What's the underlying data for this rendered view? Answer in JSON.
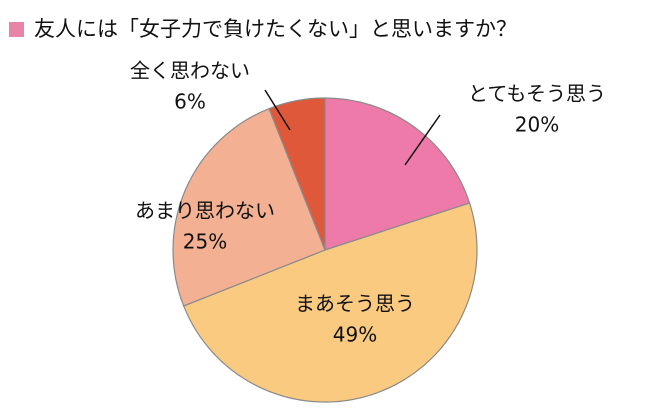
{
  "chart_data": {
    "type": "pie",
    "title": "友人には「女子力で負けたくない」と思いますか？",
    "categories": [
      "とてもそう思う",
      "まあそう思う",
      "あまり思わない",
      "全く思わない"
    ],
    "values": [
      20,
      49,
      25,
      6
    ],
    "value_labels": [
      "20%",
      "49%",
      "25%",
      "6%"
    ],
    "colors": [
      "#ee7aaa",
      "#f9ca80",
      "#f4b093",
      "#e0583a"
    ]
  }
}
